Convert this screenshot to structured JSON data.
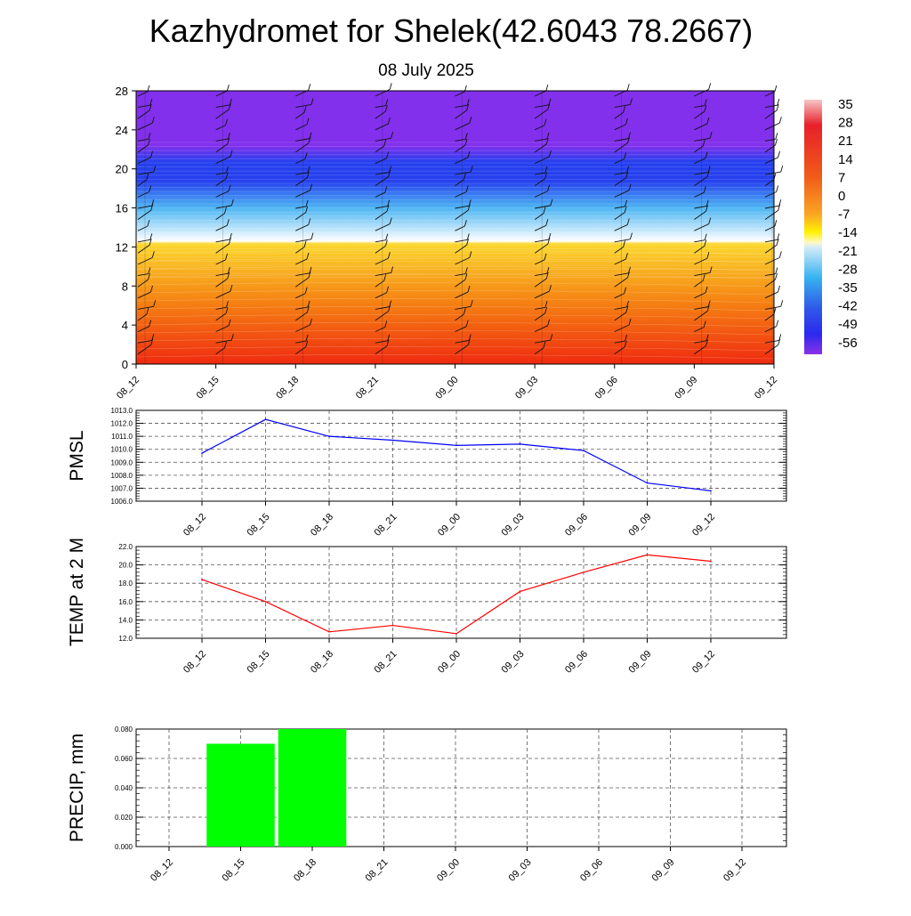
{
  "title": "Kazhydromet for Shelek(42.6043 78.2667)",
  "subtitle": "08 July 2025",
  "chart_data": [
    {
      "type": "heatmap",
      "categories": [
        "08_12",
        "08_15",
        "08_18",
        "08_21",
        "09_00",
        "09_03",
        "09_06",
        "09_09",
        "09_12"
      ],
      "yticks": [
        "0",
        "4",
        "8",
        "12",
        "16",
        "20",
        "24",
        "28"
      ],
      "ylim": [
        0,
        28
      ],
      "colorbar_labels": [
        "35",
        "28",
        "21",
        "14",
        "7",
        "0",
        "-7",
        "-14",
        "-21",
        "-28",
        "-35",
        "-42",
        "-49",
        "-56"
      ],
      "colors": {
        "warm_low": "#ef2a10",
        "warm_mid": "#f57f12",
        "warm_high": "#fbd72c",
        "cold_top": "#8230ec",
        "cold_band": "#2640ee",
        "cold_light": "#4eb6f3"
      }
    },
    {
      "type": "line",
      "ylabel": "PMSL",
      "categories": [
        "08_12",
        "08_15",
        "08_18",
        "08_21",
        "09_00",
        "09_03",
        "09_06",
        "09_09",
        "09_12"
      ],
      "ytick_labels": [
        "1006.0",
        "1007.0",
        "1008.0",
        "1009.0",
        "1010.0",
        "1011.0",
        "1012.0",
        "1013.0"
      ],
      "ylim": [
        1006,
        1013
      ],
      "series": [
        {
          "values": [
            1009.7,
            1012.3,
            1011.0,
            1010.7,
            1010.3,
            1010.4,
            1009.9,
            1007.4,
            1006.8
          ],
          "color": "#0000ff"
        }
      ],
      "grid": true
    },
    {
      "type": "line",
      "ylabel": "TEMP at 2 M",
      "categories": [
        "08_12",
        "08_15",
        "08_18",
        "08_21",
        "09_00",
        "09_03",
        "09_06",
        "09_09",
        "09_12"
      ],
      "ytick_labels": [
        "12.0",
        "14.0",
        "16.0",
        "18.0",
        "20.0",
        "22.0"
      ],
      "ylim": [
        12,
        22
      ],
      "series": [
        {
          "values": [
            18.4,
            16.0,
            12.7,
            13.4,
            12.5,
            17.1,
            19.2,
            21.1,
            20.4
          ],
          "color": "#ff0000"
        }
      ],
      "grid": true
    },
    {
      "type": "bar",
      "ylabel": "PRECIP, mm",
      "categories": [
        "08_12",
        "08_15",
        "08_18",
        "08_21",
        "09_00",
        "09_03",
        "09_06",
        "09_09",
        "09_12"
      ],
      "ytick_labels": [
        "0.000",
        "0.020",
        "0.040",
        "0.060",
        "0.080"
      ],
      "ylim": [
        0,
        0.08
      ],
      "values": [
        0,
        0.07,
        0.08,
        0,
        0,
        0,
        0,
        0,
        0
      ],
      "color": "#00ff00",
      "grid": true
    }
  ]
}
